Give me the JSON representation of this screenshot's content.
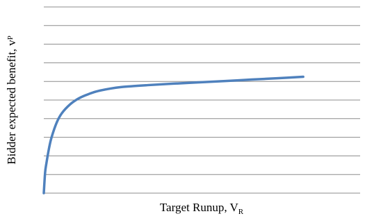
{
  "chart_data": {
    "type": "line",
    "title": "",
    "xlabel": {
      "main": "Target Runup, V",
      "sub": "R"
    },
    "ylabel": {
      "main": "Bidder expected benefit, v",
      "sub": "P"
    },
    "xlim": [
      0,
      100
    ],
    "ylim": [
      0,
      100
    ],
    "grid": true,
    "gridline_count": 10,
    "legend": "none",
    "series": [
      {
        "color": "#4f81bd",
        "x": [
          0,
          0.5,
          1,
          2,
          3,
          5,
          7,
          10,
          13,
          16,
          20,
          25,
          30,
          40,
          50,
          60,
          70,
          80,
          90,
          100
        ],
        "y": [
          0,
          11,
          16,
          24,
          30,
          38,
          43,
          47.5,
          50.5,
          52.5,
          54.5,
          56.0,
          57.0,
          58.0,
          58.8,
          59.5,
          60.2,
          61.0,
          61.7,
          62.5
        ]
      }
    ]
  }
}
